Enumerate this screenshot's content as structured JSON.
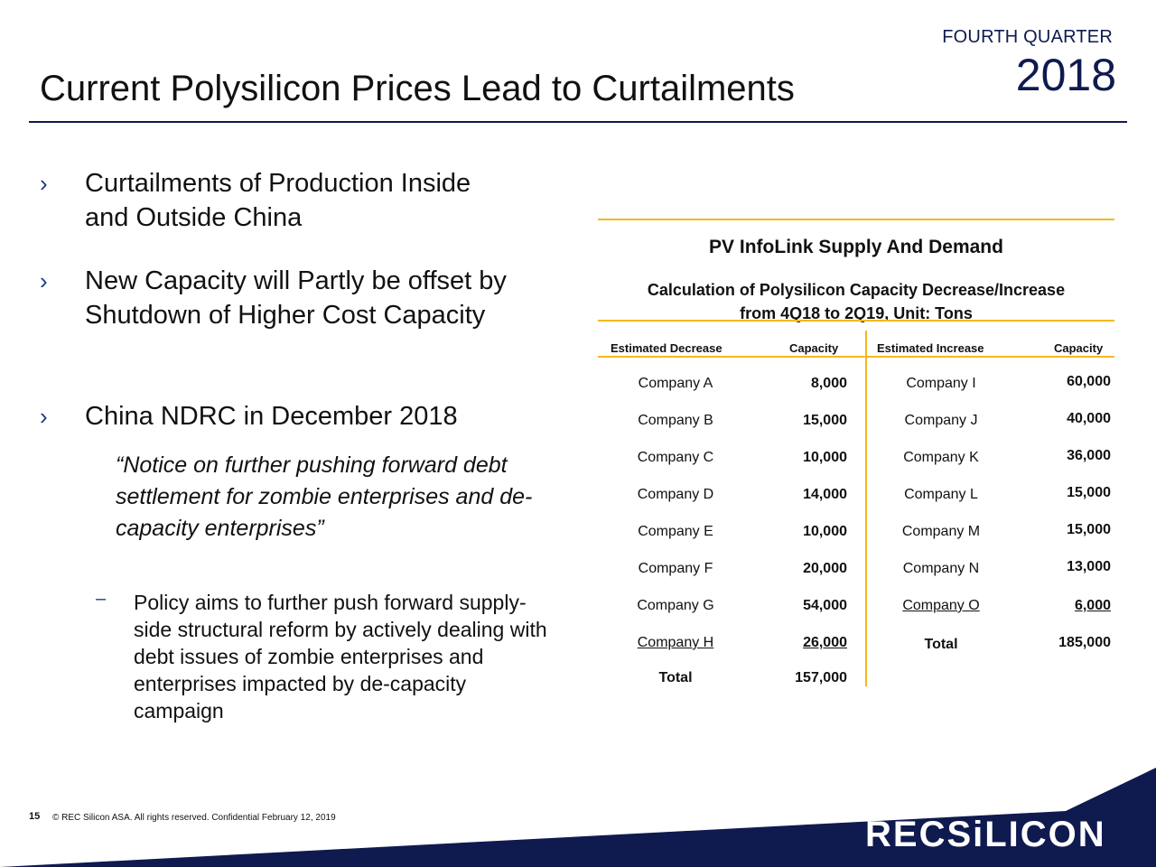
{
  "header": {
    "quarter_label": "FOURTH QUARTER",
    "year": "2018",
    "title": "Current Polysilicon Prices Lead to Curtailments"
  },
  "bullets": [
    {
      "marker": "›",
      "text": "Curtailments of Production Inside and Outside China"
    },
    {
      "marker": "›",
      "text": "New Capacity will Partly be offset by Shutdown of Higher Cost Capacity"
    },
    {
      "marker": "›",
      "text": "China NDRC in December 2018"
    }
  ],
  "quote": "“Notice on further pushing forward debt settlement for zombie enterprises and de-capacity enterprises”",
  "sub_bullet": {
    "marker": "–",
    "text": "Policy aims to further push forward supply-side structural reform by actively dealing with debt issues of zombie enterprises and enterprises impacted by de-capacity campaign"
  },
  "table": {
    "title": "PV InfoLink Supply And Demand",
    "subtitle_line1": "Calculation of Polysilicon Capacity Decrease/Increase",
    "subtitle_line2": "from 4Q18 to 2Q19, Unit: Tons",
    "headers": [
      "Estimated Decrease",
      "Capacity",
      "Estimated Increase",
      "Capacity"
    ],
    "decrease_rows": [
      {
        "name": "Company A",
        "capacity": "8,000"
      },
      {
        "name": "Company B",
        "capacity": "15,000"
      },
      {
        "name": "Company C",
        "capacity": "10,000"
      },
      {
        "name": "Company D",
        "capacity": "14,000"
      },
      {
        "name": "Company E",
        "capacity": "10,000"
      },
      {
        "name": "Company F",
        "capacity": "20,000"
      },
      {
        "name": "Company G",
        "capacity": "54,000"
      },
      {
        "name": "Company H",
        "capacity": "26,000"
      }
    ],
    "decrease_total": {
      "label": "Total",
      "value": "157,000"
    },
    "increase_rows": [
      {
        "name": "Company I",
        "capacity": "60,000"
      },
      {
        "name": "Company J",
        "capacity": "40,000"
      },
      {
        "name": "Company K",
        "capacity": "36,000"
      },
      {
        "name": "Company L",
        "capacity": "15,000"
      },
      {
        "name": "Company M",
        "capacity": "15,000"
      },
      {
        "name": "Company N",
        "capacity": "13,000"
      },
      {
        "name": "Company O",
        "capacity": "6,000"
      }
    ],
    "increase_total": {
      "label": "Total",
      "value": "185,000"
    }
  },
  "footer": {
    "page_number": "15",
    "copyright": "©  REC Silicon ASA. All rights reserved. Confidential  February 12, 2019",
    "logo_text": "RECSiLICON"
  },
  "colors": {
    "navy": "#0f1a4f",
    "accent_orange": "#f5b91e",
    "bullet_blue": "#1a3a8c"
  }
}
